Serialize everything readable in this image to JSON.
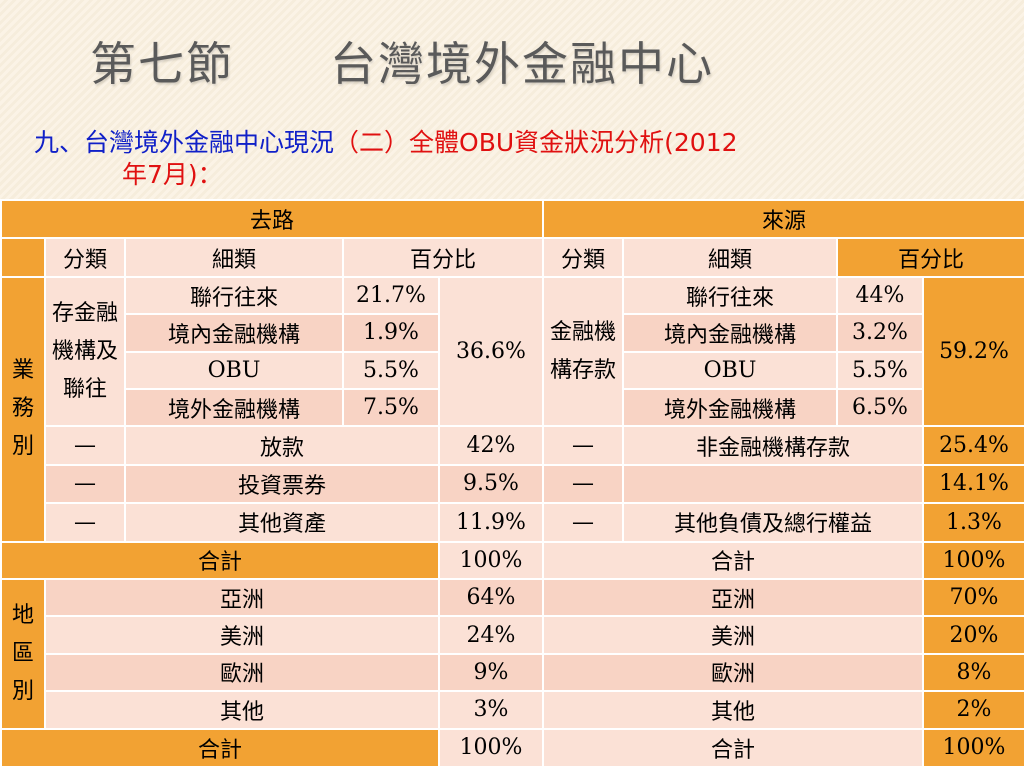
{
  "slide": {
    "title": "第七節　　台灣境外金融中心",
    "subtitle_blue": "九、台灣境外金融中心現況",
    "subtitle_red": "（二）全體OBU資金狀況分析(2012",
    "subtitle_line2": "年7月)："
  },
  "table": {
    "uses_label": "去路",
    "sources_label": "來源",
    "col_category": "分類",
    "col_subcategory": "細類",
    "col_percentage": "百分比",
    "business_label": "業務別",
    "region_label": "地區別",
    "uses_group1_label": "存金融機構及聯往",
    "sources_group1_label": "金融機構存款",
    "uses_group1": [
      {
        "name": "聯行往來",
        "pct": "21.7%"
      },
      {
        "name": "境內金融機構",
        "pct": "1.9%"
      },
      {
        "name": "OBU",
        "pct": "5.5%"
      },
      {
        "name": "境外金融機構",
        "pct": "7.5%"
      }
    ],
    "uses_group1_total": "36.6%",
    "sources_group1": [
      {
        "name": "聯行往來",
        "pct": "44%"
      },
      {
        "name": "境內金融機構",
        "pct": "3.2%"
      },
      {
        "name": "OBU",
        "pct": "5.5%"
      },
      {
        "name": "境外金融機構",
        "pct": "6.5%"
      }
    ],
    "sources_group1_total": "59.2%",
    "dash": "—",
    "uses_other": [
      {
        "name": "放款",
        "pct": "42%"
      },
      {
        "name": "投資票券",
        "pct": "9.5%"
      },
      {
        "name": "其他資產",
        "pct": "11.9%"
      }
    ],
    "sources_other": [
      {
        "name": "非金融機構存款",
        "pct": "25.4%"
      },
      {
        "name": "",
        "pct": "14.1%"
      },
      {
        "name": "其他負債及總行權益",
        "pct": "1.3%"
      }
    ],
    "total_label": "合計",
    "uses_total": "100%",
    "sources_total": "100%",
    "regions": [
      {
        "name": "亞洲",
        "uses": "64%",
        "sources": "70%"
      },
      {
        "name": "美洲",
        "uses": "24%",
        "sources": "20%"
      },
      {
        "name": "歐洲",
        "uses": "9%",
        "sources": "8%"
      },
      {
        "name": "其他",
        "uses": "3%",
        "sources": "2%"
      }
    ],
    "region_uses_total": "100%",
    "region_sources_total": "100%"
  }
}
